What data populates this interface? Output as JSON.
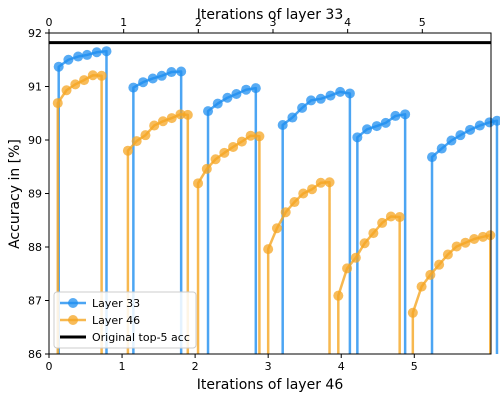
{
  "chart_data": {
    "type": "line",
    "title": "",
    "xlabel_bottom": "Iterations of layer 46",
    "xlabel_top": "Iterations of layer 33",
    "ylabel": "Accuracy in [%]",
    "ylim": [
      86,
      92
    ],
    "xlim_bottom": [
      0,
      6.05
    ],
    "xlim_top": [
      0,
      5.92
    ],
    "bottom_ticks": [
      "0",
      "1",
      "2",
      "3",
      "4",
      "5"
    ],
    "top_ticks": [
      "0",
      "1",
      "2",
      "3",
      "4",
      "5"
    ],
    "y_ticks": [
      "86",
      "87",
      "88",
      "89",
      "90",
      "91",
      "92"
    ],
    "grid": false,
    "legend_position": "lower-left",
    "reference_line": {
      "name": "Original top-5 acc",
      "value": 91.82,
      "color": "#000000"
    },
    "series": [
      {
        "name": "Layer 33",
        "axis": "top",
        "color": "#1f8ff0",
        "segments": [
          [
            [
              0.13,
              91.37
            ],
            [
              0.26,
              91.5
            ],
            [
              0.39,
              91.56
            ],
            [
              0.51,
              91.59
            ],
            [
              0.64,
              91.64
            ],
            [
              0.77,
              91.66
            ]
          ],
          [
            [
              1.13,
              90.98
            ],
            [
              1.26,
              91.08
            ],
            [
              1.39,
              91.15
            ],
            [
              1.51,
              91.2
            ],
            [
              1.64,
              91.27
            ],
            [
              1.77,
              91.28
            ]
          ],
          [
            [
              2.13,
              90.54
            ],
            [
              2.26,
              90.68
            ],
            [
              2.39,
              90.79
            ],
            [
              2.51,
              90.86
            ],
            [
              2.64,
              90.94
            ],
            [
              2.77,
              90.97
            ]
          ],
          [
            [
              3.13,
              90.28
            ],
            [
              3.26,
              90.42
            ],
            [
              3.39,
              90.6
            ],
            [
              3.51,
              90.74
            ],
            [
              3.64,
              90.77
            ],
            [
              3.77,
              90.83
            ],
            [
              3.9,
              90.9
            ],
            [
              4.03,
              90.87
            ]
          ],
          [
            [
              4.13,
              90.05
            ],
            [
              4.26,
              90.2
            ],
            [
              4.39,
              90.26
            ],
            [
              4.51,
              90.32
            ],
            [
              4.64,
              90.45
            ],
            [
              4.77,
              90.48
            ]
          ],
          [
            [
              5.13,
              89.68
            ],
            [
              5.26,
              89.84
            ],
            [
              5.39,
              89.99
            ],
            [
              5.51,
              90.09
            ],
            [
              5.64,
              90.19
            ],
            [
              5.77,
              90.27
            ],
            [
              5.9,
              90.33
            ],
            [
              6.0,
              90.36
            ]
          ]
        ]
      },
      {
        "name": "Layer 46",
        "axis": "bottom",
        "color": "#f5a623",
        "segments": [
          [
            [
              0.12,
              90.69
            ],
            [
              0.24,
              90.93
            ],
            [
              0.36,
              91.04
            ],
            [
              0.48,
              91.12
            ],
            [
              0.6,
              91.21
            ],
            [
              0.72,
              91.2
            ]
          ],
          [
            [
              1.08,
              89.8
            ],
            [
              1.2,
              89.98
            ],
            [
              1.32,
              90.09
            ],
            [
              1.44,
              90.27
            ],
            [
              1.56,
              90.35
            ],
            [
              1.68,
              90.41
            ],
            [
              1.8,
              90.48
            ],
            [
              1.9,
              90.47
            ]
          ],
          [
            [
              2.04,
              89.19
            ],
            [
              2.16,
              89.46
            ],
            [
              2.28,
              89.64
            ],
            [
              2.4,
              89.76
            ],
            [
              2.52,
              89.87
            ],
            [
              2.64,
              89.97
            ],
            [
              2.76,
              90.08
            ],
            [
              2.88,
              90.07
            ]
          ],
          [
            [
              3.0,
              87.96
            ],
            [
              3.12,
              88.35
            ],
            [
              3.24,
              88.65
            ],
            [
              3.36,
              88.84
            ],
            [
              3.48,
              89.0
            ],
            [
              3.6,
              89.08
            ],
            [
              3.72,
              89.2
            ],
            [
              3.84,
              89.21
            ]
          ],
          [
            [
              3.96,
              87.09
            ],
            [
              4.08,
              87.6
            ],
            [
              4.2,
              87.8
            ],
            [
              4.32,
              88.07
            ],
            [
              4.44,
              88.26
            ],
            [
              4.56,
              88.45
            ],
            [
              4.68,
              88.57
            ],
            [
              4.8,
              88.56
            ]
          ],
          [
            [
              4.98,
              86.77
            ],
            [
              5.1,
              87.26
            ],
            [
              5.22,
              87.48
            ],
            [
              5.34,
              87.67
            ],
            [
              5.46,
              87.86
            ],
            [
              5.58,
              88.01
            ],
            [
              5.7,
              88.08
            ],
            [
              5.82,
              88.15
            ],
            [
              5.94,
              88.19
            ],
            [
              6.04,
              88.22
            ]
          ]
        ]
      }
    ]
  }
}
